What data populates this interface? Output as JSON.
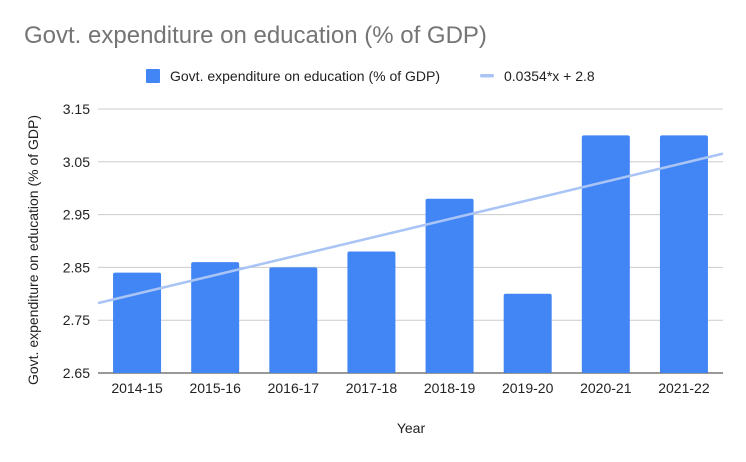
{
  "chart_data": {
    "type": "bar",
    "title": "Govt. expenditure on education (% of GDP)",
    "xlabel": "Year",
    "ylabel": "Govt. expenditure on education (% of GDP)",
    "categories": [
      "2014-15",
      "2015-16",
      "2016-17",
      "2017-18",
      "2018-19",
      "2019-20",
      "2020-21",
      "2021-22"
    ],
    "series": [
      {
        "name": "Govt. expenditure on education (% of GDP)",
        "values": [
          2.84,
          2.86,
          2.85,
          2.88,
          2.98,
          2.8,
          3.1,
          3.1
        ],
        "color": "#4285f4"
      }
    ],
    "trendline": {
      "name": "0.0354*x + 2.8",
      "slope": 0.0354,
      "intercept": 2.8,
      "color": "#a9c4f5"
    },
    "ylim": [
      2.65,
      3.15
    ],
    "yticks": [
      "2.65",
      "2.75",
      "2.85",
      "2.95",
      "3.05",
      "3.15"
    ],
    "grid": true,
    "legend": "top-center"
  }
}
